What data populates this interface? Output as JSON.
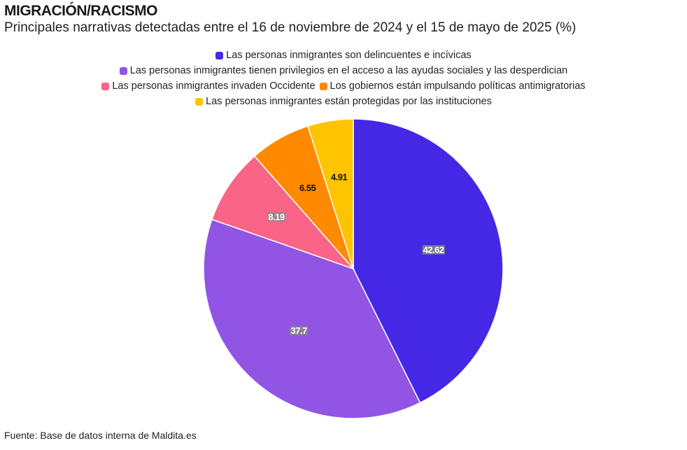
{
  "header": {
    "title": "MIGRACIÓN/RACISMO",
    "subtitle": "Principales narrativas detectadas entre el 16 de noviembre de 2024 y el 15 de mayo de 2025 (%)"
  },
  "footer": {
    "source": "Fuente: Base de datos interna de Maldita.es"
  },
  "chart_data": {
    "type": "pie",
    "title": "MIGRACIÓN/RACISMO",
    "subtitle": "Principales narrativas detectadas entre el 16 de noviembre de 2024 y el 15 de mayo de 2025 (%)",
    "legend_position": "top-center",
    "start_angle": "12 o'clock, clockwise",
    "slices": [
      {
        "label": "Las personas inmigrantes son delincuentes e incívicas",
        "value": 42.62,
        "display": "42.62",
        "color": "#4428e6",
        "label_style": "light"
      },
      {
        "label": "Las personas inmigrantes tienen privilegios en el acceso a las ayudas sociales y las desperdician",
        "value": 37.7,
        "display": "37.7",
        "color": "#9154e4",
        "label_style": "light"
      },
      {
        "label": "Las personas inmigrantes invaden Occidente",
        "value": 8.19,
        "display": "8.19",
        "color": "#fa6487",
        "label_style": "light"
      },
      {
        "label": "Los gobiernos están impulsando políticas antimigratorias",
        "value": 6.55,
        "display": "6.55",
        "color": "#ff8a00",
        "label_style": "dark"
      },
      {
        "label": "Las personas inmigrantes están protegidas por las instituciones",
        "value": 4.91,
        "display": "4.91",
        "color": "#ffc400",
        "label_style": "dark"
      }
    ]
  }
}
